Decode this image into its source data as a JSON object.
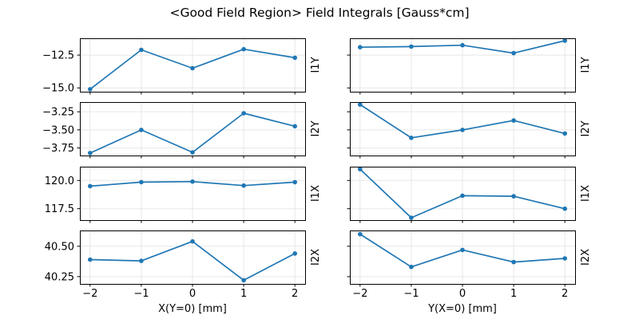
{
  "chart_data": {
    "type": "line",
    "title": "<Good Field Region> Field Integrals [Gauss*cm]",
    "line_color": "#1f77b4",
    "grid_color": "#e7e7e7",
    "spine_color": "#000000",
    "grid": true,
    "legend": false,
    "marker": "circle",
    "x": [
      -2,
      -1,
      0,
      1,
      2
    ],
    "xlim": [
      -2.2,
      2.2
    ],
    "xticks": [
      -2,
      -1,
      0,
      1,
      2
    ],
    "xtick_labels": [
      "−2",
      "−1",
      "0",
      "1",
      "2"
    ],
    "columns": [
      {
        "xlabel": "X(Y=0) [mm]"
      },
      {
        "xlabel": "Y(X=0) [mm]"
      }
    ],
    "rows": [
      {
        "label": "I1Y",
        "ylim": [
          -15.29,
          -11.22
        ],
        "yticks": [
          -12.5,
          -15.0
        ],
        "ytick_labels": [
          "−12.5",
          "−15.0"
        ]
      },
      {
        "label": "I2Y",
        "ylim": [
          -3.854,
          -3.116
        ],
        "yticks": [
          -3.25,
          -3.5,
          -3.75
        ],
        "ytick_labels": [
          "−3.25",
          "−3.50",
          "−3.75"
        ]
      },
      {
        "label": "I1X",
        "ylim": [
          116.49,
          121.22
        ],
        "yticks": [
          120.0,
          117.5
        ],
        "ytick_labels": [
          "120.0",
          "117.5"
        ]
      },
      {
        "label": "I2X",
        "ylim": [
          40.19,
          40.63
        ],
        "yticks": [
          40.5,
          40.25
        ],
        "ytick_labels": [
          "40.50",
          "40.25"
        ]
      }
    ],
    "series": [
      {
        "name": "I1Y vs X",
        "row": 0,
        "col": 0,
        "values": [
          -15.1,
          -12.1,
          -13.5,
          -12.05,
          -12.7
        ]
      },
      {
        "name": "I1Y vs Y",
        "row": 0,
        "col": 1,
        "values": [
          -11.9,
          -11.85,
          -11.75,
          -12.35,
          -11.4
        ]
      },
      {
        "name": "I2Y vs X",
        "row": 1,
        "col": 0,
        "values": [
          -3.82,
          -3.5,
          -3.81,
          -3.27,
          -3.45
        ]
      },
      {
        "name": "I2Y vs Y",
        "row": 1,
        "col": 1,
        "values": [
          -3.15,
          -3.61,
          -3.5,
          -3.37,
          -3.55
        ]
      },
      {
        "name": "I1X vs X",
        "row": 2,
        "col": 0,
        "values": [
          119.5,
          119.85,
          119.9,
          119.55,
          119.85
        ]
      },
      {
        "name": "I1X vs Y",
        "row": 2,
        "col": 1,
        "values": [
          121.0,
          116.7,
          118.65,
          118.6,
          117.5
        ]
      },
      {
        "name": "I2X vs X",
        "row": 3,
        "col": 0,
        "values": [
          40.39,
          40.38,
          40.54,
          40.22,
          40.44
        ]
      },
      {
        "name": "I2X vs Y",
        "row": 3,
        "col": 1,
        "values": [
          40.6,
          40.33,
          40.47,
          40.37,
          40.4
        ]
      }
    ]
  }
}
